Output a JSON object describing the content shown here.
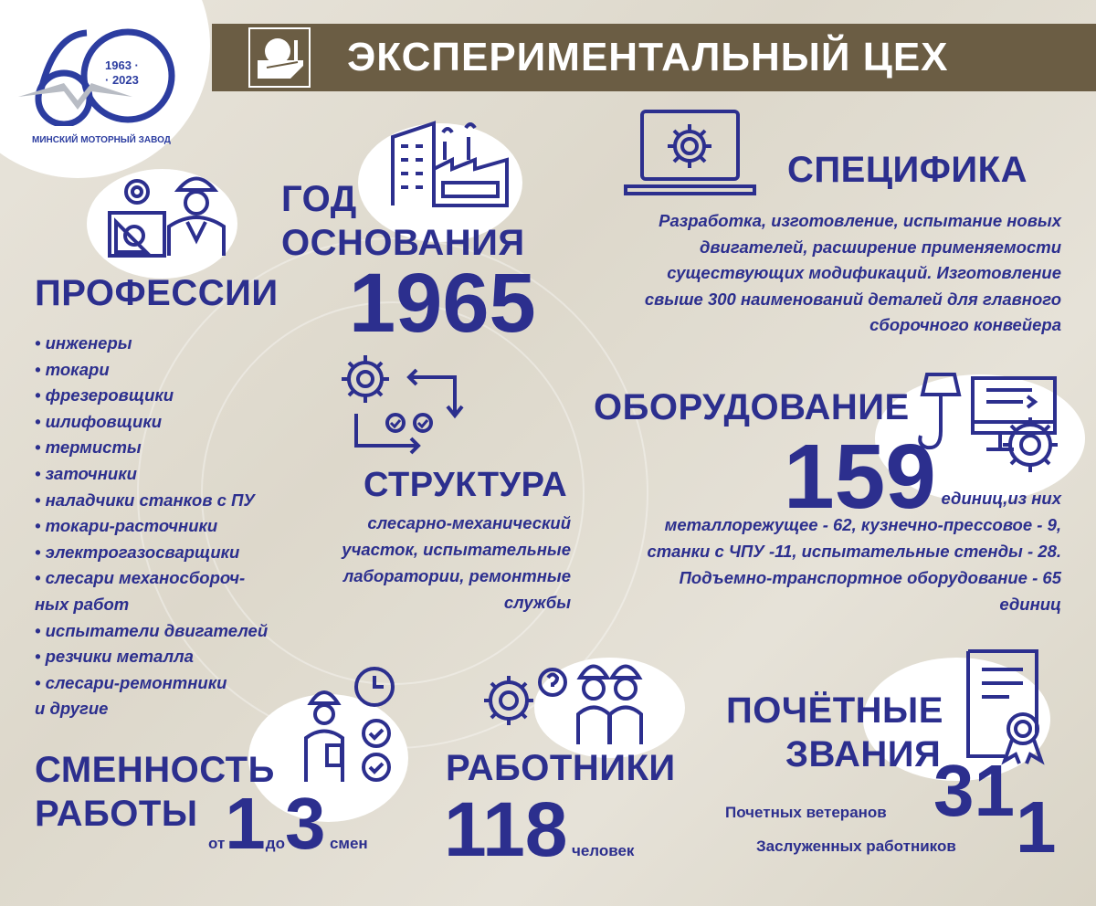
{
  "logo": {
    "years_top": "1963 ·",
    "years_bottom": "· 2023",
    "company": "МИНСКИЙ МОТОРНЫЙ ЗАВОД",
    "number": "60"
  },
  "header": {
    "title": "ЭКСПЕРИМЕНТАЛЬНЫЙ ЦЕХ",
    "icon": "hand-and-helmet-icon"
  },
  "colors": {
    "primary": "#2c2f8e",
    "header_bg": "#6b5d44",
    "background": "#e6e2d8"
  },
  "professions": {
    "title": "ПРОФЕССИИ",
    "items": [
      "• инженеры",
      "• токари",
      "• фрезеровщики",
      "• шлифовщики",
      "• термисты",
      "• заточники",
      "• наладчики станков с ПУ",
      "• токари-расточники",
      "• электрогазосварщики",
      "• слесари механосбороч-",
      "ных работ",
      "• испытатели двигателей",
      "• резчики металла",
      "• слесари-ремонтники",
      "и другие"
    ]
  },
  "founded": {
    "title_line1": "ГОД",
    "title_line2": "ОСНОВАНИЯ",
    "year": "1965"
  },
  "specifics": {
    "title": "СПЕЦИФИКА",
    "lines": [
      "Разработка, изготовление, испытание новых",
      "двигателей, расширение применяемости",
      "существующих модификаций. Изготовление",
      "свыше 300 наименований деталей для главного",
      "сборочного конвейера"
    ]
  },
  "structure": {
    "title": "СТРУКТУРА",
    "lines": [
      "слесарно-механический",
      "участок, испытательные",
      "лаборатории, ремонтные",
      "службы"
    ]
  },
  "equipment": {
    "title": "ОБОРУДОВАНИЕ",
    "count": "159",
    "lines": [
      "единиц,из них",
      "металлорежущее - 62, кузнечно-прессовое - 9,",
      "станки с ЧПУ -11, испытательные стенды - 28.",
      "Подъемно-транспортное оборудование - 65",
      "единиц"
    ]
  },
  "shifts": {
    "title_line1": "СМЕННОСТЬ",
    "title_line2": "РАБОТЫ",
    "from_label": "от",
    "from": "1",
    "to_label": "до",
    "to": "3",
    "unit": "смен"
  },
  "workers": {
    "title": "РАБОТНИКИ",
    "count": "118",
    "unit": "человек"
  },
  "honors": {
    "title_line1": "ПОЧЁТНЫЕ",
    "title_line2": "ЗВАНИЯ",
    "veterans_label": "Почетных ветеранов",
    "veterans": "31",
    "merited_label": "Заслуженных работников",
    "merited": "1"
  }
}
